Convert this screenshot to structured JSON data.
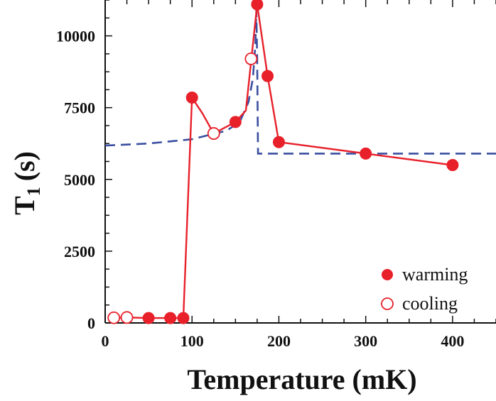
{
  "chart_data": {
    "type": "scatter",
    "xlabel": "Temperature (mK)",
    "ylabel_main": "T",
    "ylabel_sub": "1",
    "ylabel_unit": "(s)",
    "xlim": [
      0,
      450
    ],
    "ylim": [
      0,
      11250
    ],
    "x_ticks": [
      0,
      100,
      200,
      300,
      400
    ],
    "x_tick_labels": [
      "0",
      "100",
      "200",
      "300",
      "400"
    ],
    "y_ticks": [
      0,
      2500,
      5000,
      7500,
      10000
    ],
    "y_tick_labels": [
      "0",
      "2500",
      "5000",
      "7500",
      "10000"
    ],
    "legend_position": "bottom-right",
    "colors": {
      "data": "#e8202a",
      "fit": "#3a4fa0",
      "axis": "#111111"
    },
    "series": [
      {
        "name": "warming",
        "marker": "filled-circle",
        "points": [
          {
            "x": 50,
            "y": 170
          },
          {
            "x": 75,
            "y": 170
          },
          {
            "x": 90,
            "y": 170
          },
          {
            "x": 100,
            "y": 7850
          },
          {
            "x": 150,
            "y": 7000
          },
          {
            "x": 175,
            "y": 11100
          },
          {
            "x": 187,
            "y": 8600
          },
          {
            "x": 200,
            "y": 6300
          },
          {
            "x": 300,
            "y": 5900
          },
          {
            "x": 400,
            "y": 5500
          }
        ]
      },
      {
        "name": "cooling",
        "marker": "open-circle",
        "points": [
          {
            "x": 10,
            "y": 180
          },
          {
            "x": 25,
            "y": 190
          },
          {
            "x": 125,
            "y": 6600
          },
          {
            "x": 168,
            "y": 9200
          }
        ]
      }
    ],
    "connecting_line": {
      "style": "solid",
      "points": [
        {
          "x": 10,
          "y": 180
        },
        {
          "x": 25,
          "y": 190
        },
        {
          "x": 50,
          "y": 170
        },
        {
          "x": 75,
          "y": 170
        },
        {
          "x": 90,
          "y": 170
        },
        {
          "x": 100,
          "y": 7850
        },
        {
          "x": 112,
          "y": 7300
        },
        {
          "x": 125,
          "y": 6600
        },
        {
          "x": 150,
          "y": 7000
        },
        {
          "x": 162,
          "y": 7400
        },
        {
          "x": 175,
          "y": 11100
        },
        {
          "x": 187,
          "y": 8600
        },
        {
          "x": 200,
          "y": 6300
        },
        {
          "x": 300,
          "y": 5900
        },
        {
          "x": 400,
          "y": 5500
        }
      ]
    },
    "fit_curve": {
      "style": "dashed",
      "points": [
        {
          "x": 0,
          "y": 6180
        },
        {
          "x": 50,
          "y": 6250
        },
        {
          "x": 100,
          "y": 6400
        },
        {
          "x": 140,
          "y": 6700
        },
        {
          "x": 155,
          "y": 7000
        },
        {
          "x": 165,
          "y": 7700
        },
        {
          "x": 170,
          "y": 8500
        },
        {
          "x": 173,
          "y": 9700
        },
        {
          "x": 174,
          "y": 10900
        },
        {
          "x": 175,
          "y": 9200
        },
        {
          "x": 176,
          "y": 5900
        },
        {
          "x": 450,
          "y": 5900
        }
      ]
    }
  }
}
